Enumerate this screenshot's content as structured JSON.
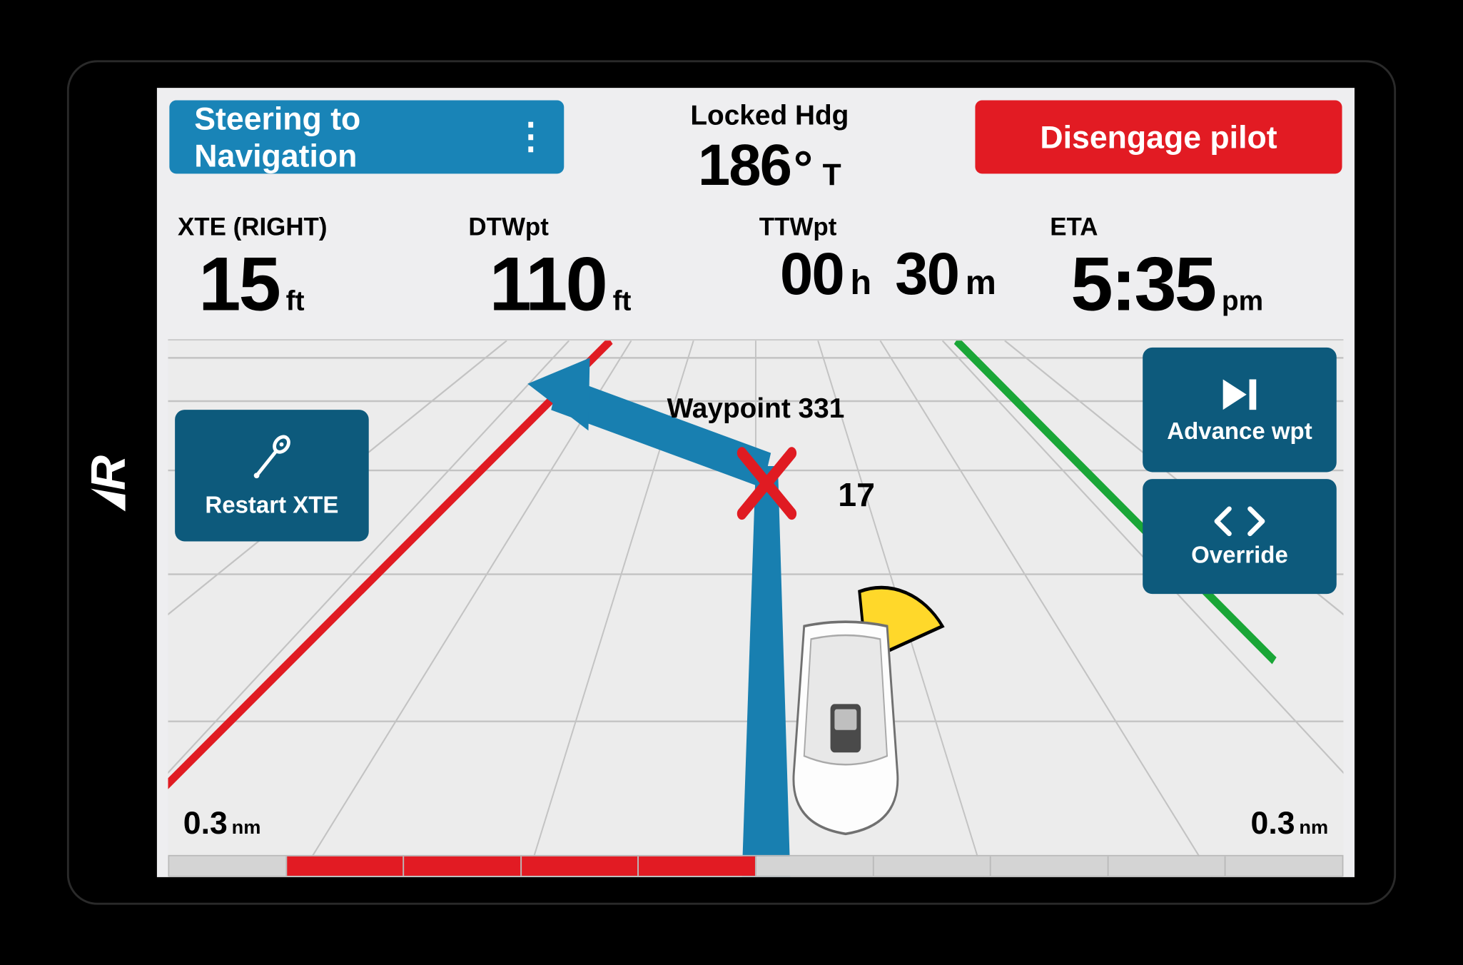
{
  "brand": "R",
  "colors": {
    "accent_blue": "#1984b7",
    "deep_blue": "#0d5a7c",
    "danger_red": "#e21b23",
    "track_blue": "#187fb0",
    "lane_red": "#e01b22",
    "lane_green": "#1aa637",
    "screen_bg": "#eeeef0",
    "grid_line": "#c9c9c9",
    "rudder_yellow": "#ffd82a"
  },
  "topbar": {
    "steering_mode_label": "Steering to Navigation",
    "locked_hdg_label": "Locked Hdg",
    "locked_hdg_value": "186",
    "locked_hdg_deg": "°",
    "locked_hdg_unit": "T",
    "disengage_label": "Disengage pilot"
  },
  "metrics": {
    "xte": {
      "label": "XTE (RIGHT)",
      "value": "15",
      "unit": "ft"
    },
    "dtwpt": {
      "label": "DTWpt",
      "value": "110",
      "unit": "ft"
    },
    "ttwpt": {
      "label": "TTWpt",
      "hh": "00",
      "hu": "h",
      "mm": "30",
      "mu": "m"
    },
    "eta": {
      "label": "ETA",
      "value": "5:35",
      "unit": "pm"
    }
  },
  "nav": {
    "waypoint_label": "Waypoint 331",
    "rudder_angle": "17",
    "range_left": {
      "value": "0.3",
      "unit": "nm"
    },
    "range_right": {
      "value": "0.3",
      "unit": "nm"
    },
    "buttons": {
      "restart_xte": "Restart XTE",
      "advance_wpt": "Advance wpt",
      "override": "Override"
    },
    "bottom_bar_segments": [
      "grey",
      "red",
      "red",
      "red",
      "red",
      "grey",
      "grey",
      "grey",
      "grey",
      "grey"
    ]
  }
}
